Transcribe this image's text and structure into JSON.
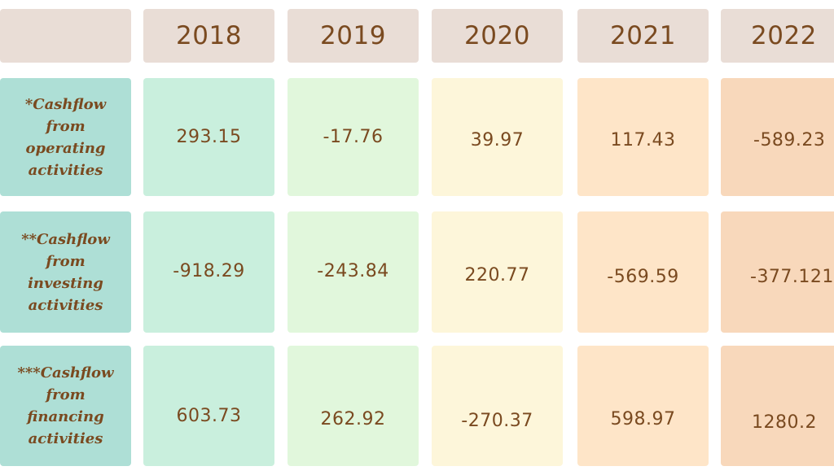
{
  "colors": {
    "header_bg": "#e9ddd6",
    "label_bg": "#aedfd6",
    "text": "#7a4a20",
    "col_2018": "#c9efdd",
    "col_2019": "#e1f7dc",
    "col_2020": "#fdf6da",
    "col_2021": "#fee5c8",
    "col_2022": "#f8d8bb"
  },
  "chart_data": {
    "type": "table",
    "columns": [
      "2018",
      "2019",
      "2020",
      "2021",
      "2022"
    ],
    "rows": [
      {
        "label": "*Cashflow\nfrom\noperating\nactivities",
        "values": [
          "293.15",
          "-17.76",
          "39.97",
          "117.43",
          "-589.23"
        ]
      },
      {
        "label": "**Cashflow\nfrom\ninvesting\nactivities",
        "values": [
          "-918.29",
          "-243.84",
          "220.77",
          "-569.59",
          "-377.121"
        ]
      },
      {
        "label": "***Cashflow\nfrom\nfinancing\nactivities",
        "values": [
          "603.73",
          "262.92",
          "-270.37",
          "598.97",
          "1280.2"
        ]
      }
    ]
  }
}
